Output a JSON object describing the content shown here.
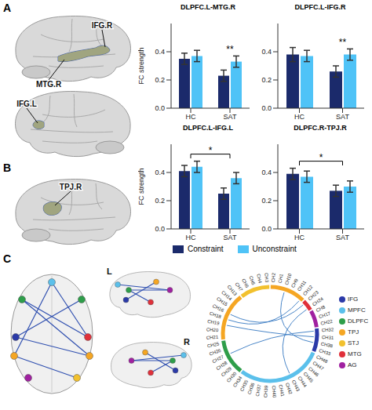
{
  "panel_letters": [
    "A",
    "B",
    "C"
  ],
  "brain_labels": {
    "A_right": [
      "IFG.R",
      "MTG.R"
    ],
    "A_left": [
      "IFG.L"
    ],
    "B": [
      "TPJ.R"
    ]
  },
  "chart_data": [
    {
      "type": "bar",
      "title": "DLPFC.L-MTG.R",
      "categories": [
        "HC",
        "SAT"
      ],
      "series": [
        {
          "name": "Constraint",
          "color": "#1b2a6b",
          "values": [
            0.35,
            0.23
          ],
          "errors": [
            0.04,
            0.04
          ]
        },
        {
          "name": "Unconstraint",
          "color": "#4fc3f7",
          "values": [
            0.37,
            0.33
          ],
          "errors": [
            0.04,
            0.04
          ]
        }
      ],
      "ylim": [
        0,
        0.6
      ],
      "yticks": [
        {
          "value": 0,
          "label": "0.0"
        },
        0.2,
        0.4
      ],
      "y_label": "FC strength",
      "annotations": [
        {
          "text": "**",
          "category": "SAT"
        }
      ]
    },
    {
      "type": "bar",
      "title": "DLPFC.L-IFG.R",
      "categories": [
        "HC",
        "SAT"
      ],
      "series": [
        {
          "name": "Constraint",
          "color": "#1b2a6b",
          "values": [
            0.38,
            0.26
          ],
          "errors": [
            0.05,
            0.04
          ]
        },
        {
          "name": "Unconstraint",
          "color": "#4fc3f7",
          "values": [
            0.37,
            0.38
          ],
          "errors": [
            0.04,
            0.04
          ]
        }
      ],
      "ylim": [
        0,
        0.6
      ],
      "yticks": [
        {
          "value": 0,
          "label": "0.0"
        },
        0.2,
        0.4
      ],
      "annotations": [
        {
          "text": "**",
          "category": "SAT"
        }
      ]
    },
    {
      "type": "bar",
      "title": "DLPFC.L-IFG.L",
      "categories": [
        "HC",
        "SAT"
      ],
      "series": [
        {
          "name": "Constraint",
          "color": "#1b2a6b",
          "values": [
            0.41,
            0.25
          ],
          "errors": [
            0.04,
            0.04
          ]
        },
        {
          "name": "Unconstraint",
          "color": "#4fc3f7",
          "values": [
            0.44,
            0.36
          ],
          "errors": [
            0.04,
            0.04
          ]
        }
      ],
      "ylim": [
        0,
        0.6
      ],
      "yticks": [
        {
          "value": 0,
          "label": "0.0"
        },
        0.2,
        0.4
      ],
      "y_label": "FC strength",
      "annotations": [
        {
          "text": "*",
          "categories": [
            "HC",
            "SAT"
          ]
        }
      ]
    },
    {
      "type": "bar",
      "title": "DLPFC.R-TPJ.R",
      "categories": [
        "HC",
        "SAT"
      ],
      "series": [
        {
          "name": "Constraint",
          "color": "#1b2a6b",
          "values": [
            0.39,
            0.27
          ],
          "errors": [
            0.04,
            0.04
          ]
        },
        {
          "name": "Unconstraint",
          "color": "#4fc3f7",
          "values": [
            0.37,
            0.3
          ],
          "errors": [
            0.04,
            0.04
          ]
        }
      ],
      "ylim": [
        0,
        0.6
      ],
      "yticks": [
        {
          "value": 0,
          "label": "0.0"
        },
        0.2,
        0.4
      ],
      "annotations": [
        {
          "text": "*",
          "categories": [
            "HC",
            "SAT"
          ]
        }
      ]
    }
  ],
  "glass_brain": {
    "hemisphere_labels": [
      "L",
      "R"
    ]
  },
  "regions": [
    {
      "name": "IFG",
      "color": "#2b3aa8"
    },
    {
      "name": "MPFC",
      "color": "#5bc0eb"
    },
    {
      "name": "DLPFC",
      "color": "#2e9e4a"
    },
    {
      "name": "TPJ",
      "color": "#f5a623"
    },
    {
      "name": "STJ",
      "color": "#f2c12e"
    },
    {
      "name": "MTG",
      "color": "#e0303a"
    },
    {
      "name": "AG",
      "color": "#a020a0"
    }
  ],
  "chord": {
    "segments": [
      {
        "region": "TPJ",
        "channels": [
          "CH2",
          "CH1",
          "CH10",
          "CH9",
          "CH11",
          "CH12"
        ]
      },
      {
        "region": "MTG",
        "channels": [
          "CH23",
          "CH24"
        ]
      },
      {
        "region": "AG",
        "channels": [
          "CH8",
          "CH17",
          "CH22"
        ]
      },
      {
        "region": "IFG",
        "channels": [
          "CH32",
          "CH31",
          "CH38",
          "CH33"
        ]
      },
      {
        "region": "MPFC",
        "channels": [
          "CH48",
          "CH47",
          "CH46",
          "CH45",
          "CH44",
          "CH43",
          "CH42",
          "CH41",
          "CH40",
          "CH39",
          "CH37",
          "CH36",
          "CH35",
          "CH34"
        ]
      },
      {
        "region": "DLPFC",
        "channels": [
          "CH30",
          "CH29",
          "CH28",
          "CH27",
          "CH26",
          "CH25"
        ]
      },
      {
        "region": "TPJ",
        "channels": [
          "CH21",
          "CH20",
          "CH19",
          "CH18",
          "CH16",
          "CH15",
          "CH14",
          "CH13"
        ]
      },
      {
        "region": "STJ",
        "channels": [
          "CH7",
          "CH6",
          "CH5",
          "CH4",
          "CH3"
        ]
      }
    ],
    "links": [
      [
        "CH18",
        "CH12"
      ],
      [
        "CH16",
        "CH23"
      ],
      [
        "CH19",
        "CH31"
      ],
      [
        "CH27",
        "CH32"
      ],
      [
        "CH43",
        "CH24"
      ],
      [
        "CH10",
        "CH38"
      ]
    ]
  }
}
